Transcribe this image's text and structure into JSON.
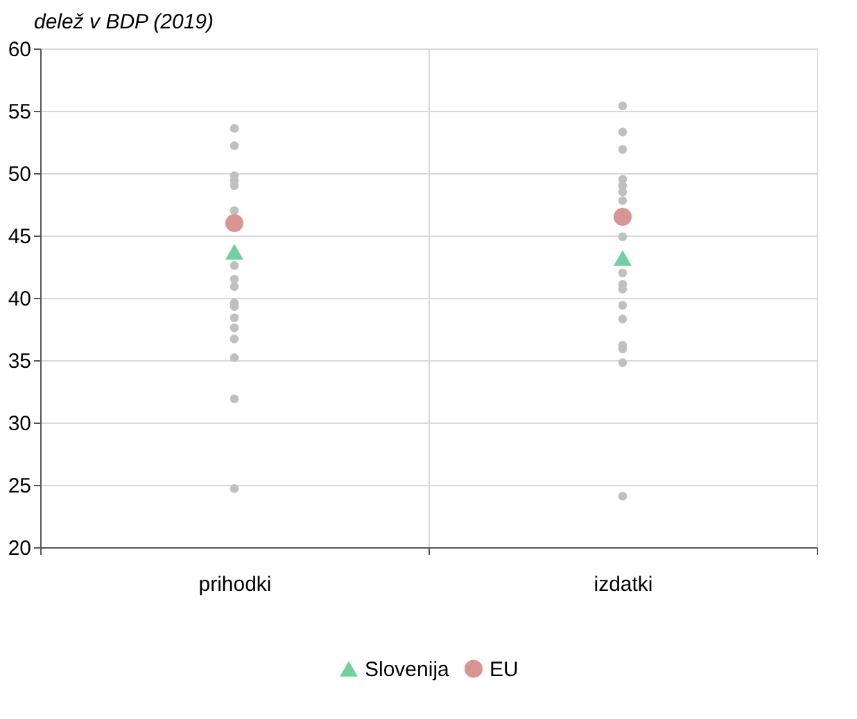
{
  "chart_data": {
    "type": "scatter",
    "ylabel": "delež v BDP (2019)",
    "categories": [
      "prihodki",
      "izdatki"
    ],
    "ylim": [
      20,
      60
    ],
    "yticks": [
      20,
      25,
      30,
      35,
      40,
      45,
      50,
      55,
      60
    ],
    "grid": true,
    "legend": "bottom",
    "series": [
      {
        "color": "#c0c0c0",
        "marker": "circle",
        "x": [
          "prihodki",
          "prihodki",
          "prihodki",
          "prihodki",
          "prihodki",
          "prihodki",
          "prihodki",
          "prihodki",
          "prihodki",
          "prihodki",
          "prihodki",
          "prihodki",
          "prihodki",
          "prihodki",
          "prihodki",
          "prihodki",
          "prihodki",
          "prihodki",
          "izdatki",
          "izdatki",
          "izdatki",
          "izdatki",
          "izdatki",
          "izdatki",
          "izdatki",
          "izdatki",
          "izdatki",
          "izdatki",
          "izdatki",
          "izdatki",
          "izdatki",
          "izdatki",
          "izdatki",
          "izdatki",
          "izdatki"
        ],
        "values": [
          53.6,
          52.2,
          49.8,
          49.4,
          49.0,
          47.0,
          null,
          42.6,
          41.5,
          40.9,
          39.6,
          39.3,
          38.4,
          37.6,
          36.7,
          35.2,
          31.9,
          24.7,
          55.4,
          53.3,
          51.9,
          49.5,
          49.0,
          48.5,
          47.8,
          44.9,
          42.0,
          41.1,
          40.7,
          39.4,
          38.3,
          36.2,
          35.9,
          34.8,
          24.1
        ]
      },
      {
        "name": "Slovenija",
        "color": "#72d0a0",
        "marker": "triangle",
        "values": [
          43.7,
          43.2
        ]
      },
      {
        "name": "EU",
        "color": "#d99594",
        "marker": "circle",
        "values": [
          46.0,
          46.5
        ]
      }
    ]
  }
}
